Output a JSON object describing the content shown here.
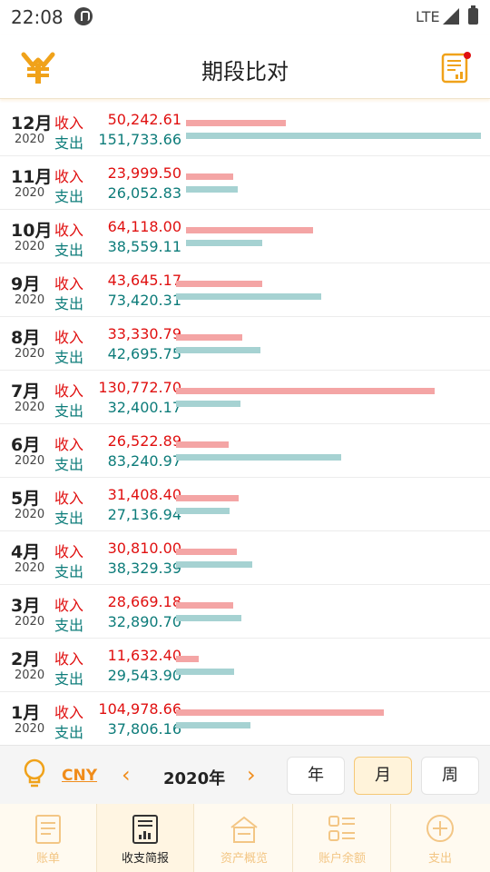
{
  "status_bar": {
    "time": "22:08",
    "network": "LTE"
  },
  "app_bar": {
    "title": "期段比对"
  },
  "rows": [
    {
      "month": "12月",
      "year": "2020",
      "income_label": "收入",
      "expense_label": "支出",
      "income": "50,242.61",
      "expense": "151,733.66"
    },
    {
      "month": "11月",
      "year": "2020",
      "income_label": "收入",
      "expense_label": "支出",
      "income": "23,999.50",
      "expense": "26,052.83"
    },
    {
      "month": "10月",
      "year": "2020",
      "income_label": "收入",
      "expense_label": "支出",
      "income": "64,118.00",
      "expense": "38,559.11"
    },
    {
      "month": "9月",
      "year": "2020",
      "income_label": "收入",
      "expense_label": "支出",
      "income": "43,645.17",
      "expense": "73,420.31"
    },
    {
      "month": "8月",
      "year": "2020",
      "income_label": "收入",
      "expense_label": "支出",
      "income": "33,330.79",
      "expense": "42,695.75"
    },
    {
      "month": "7月",
      "year": "2020",
      "income_label": "收入",
      "expense_label": "支出",
      "income": "130,772.70",
      "expense": "32,400.17"
    },
    {
      "month": "6月",
      "year": "2020",
      "income_label": "收入",
      "expense_label": "支出",
      "income": "26,522.89",
      "expense": "83,240.97"
    },
    {
      "month": "5月",
      "year": "2020",
      "income_label": "收入",
      "expense_label": "支出",
      "income": "31,408.40",
      "expense": "27,136.94"
    },
    {
      "month": "4月",
      "year": "2020",
      "income_label": "收入",
      "expense_label": "支出",
      "income": "30,810.00",
      "expense": "38,329.39"
    },
    {
      "month": "3月",
      "year": "2020",
      "income_label": "收入",
      "expense_label": "支出",
      "income": "28,669.18",
      "expense": "32,890.70"
    },
    {
      "month": "2月",
      "year": "2020",
      "income_label": "收入",
      "expense_label": "支出",
      "income": "11,632.40",
      "expense": "29,543.90"
    },
    {
      "month": "1月",
      "year": "2020",
      "income_label": "收入",
      "expense_label": "支出",
      "income": "104,978.66",
      "expense": "37,806.16"
    }
  ],
  "controls": {
    "currency": "CNY",
    "prev": "‹",
    "period": "2020年",
    "next": "›",
    "seg_year": "年",
    "seg_month": "月",
    "seg_week": "周",
    "active_segment": "月"
  },
  "tabs": [
    {
      "label": "账单",
      "icon": "bill-icon"
    },
    {
      "label": "收支简报",
      "icon": "report-chart-icon",
      "active": true
    },
    {
      "label": "资产概览",
      "icon": "assets-icon"
    },
    {
      "label": "账户余额",
      "icon": "account-grid-icon"
    },
    {
      "label": "支出",
      "icon": "plus-circle-icon"
    }
  ],
  "colors": {
    "accent": "#f08c1a",
    "income": "#e01010",
    "expense": "#0d7c7a",
    "income_bar": "#f4a5a5",
    "expense_bar": "#a6d2d2"
  }
}
